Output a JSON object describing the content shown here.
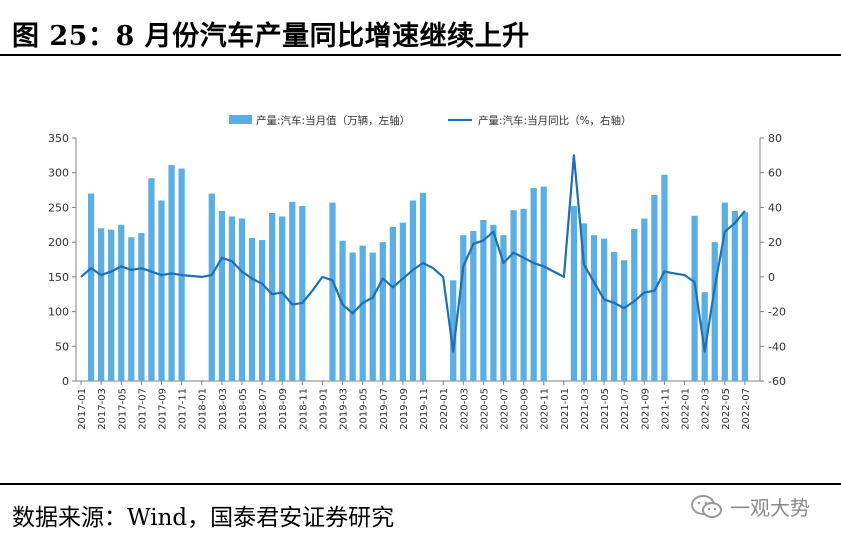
{
  "header": {
    "title": "图 25：8 月份汽车产量同比增速继续上升"
  },
  "footer": {
    "source": "数据来源：Wind，国泰君安证券研究",
    "watermark": "一观大势"
  },
  "colors": {
    "bar": "#5aaee3",
    "line": "#1f6fb3",
    "axis": "#808080",
    "text": "#333333"
  },
  "chart_data": {
    "type": "bar+line",
    "title": "",
    "legend": [
      "产量:汽车:当月值（万辆，左轴）",
      "产量:汽车:当月同比（%，右轴）"
    ],
    "legend_position": "top",
    "y_left": {
      "min": 0,
      "max": 350,
      "ticks": [
        0,
        50,
        100,
        150,
        200,
        250,
        300,
        350
      ]
    },
    "y_right": {
      "min": -60,
      "max": 80,
      "ticks": [
        -60,
        -40,
        -20,
        0,
        20,
        40,
        60,
        80
      ]
    },
    "x_tick_labels": [
      "2017-01",
      "2017-03",
      "2017-05",
      "2017-07",
      "2017-09",
      "2017-11",
      "2018-01",
      "2018-03",
      "2018-05",
      "2018-07",
      "2018-09",
      "2018-11",
      "2019-01",
      "2019-03",
      "2019-05",
      "2019-07",
      "2019-09",
      "2019-11",
      "2020-01",
      "2020-03",
      "2020-05",
      "2020-07",
      "2020-09",
      "2020-11",
      "2021-01",
      "2021-03",
      "2021-05",
      "2021-07",
      "2021-09",
      "2021-11",
      "2022-01",
      "2022-03",
      "2022-05",
      "2022-07"
    ],
    "months": [
      "2017-01",
      "2017-02",
      "2017-03",
      "2017-04",
      "2017-05",
      "2017-06",
      "2017-07",
      "2017-08",
      "2017-09",
      "2017-10",
      "2017-11",
      "2017-12",
      "2018-01",
      "2018-02",
      "2018-03",
      "2018-04",
      "2018-05",
      "2018-06",
      "2018-07",
      "2018-08",
      "2018-09",
      "2018-10",
      "2018-11",
      "2018-12",
      "2019-01",
      "2019-02",
      "2019-03",
      "2019-04",
      "2019-05",
      "2019-06",
      "2019-07",
      "2019-08",
      "2019-09",
      "2019-10",
      "2019-11",
      "2019-12",
      "2020-01",
      "2020-02",
      "2020-03",
      "2020-04",
      "2020-05",
      "2020-06",
      "2020-07",
      "2020-08",
      "2020-09",
      "2020-10",
      "2020-11",
      "2020-12",
      "2021-01",
      "2021-02",
      "2021-03",
      "2021-04",
      "2021-05",
      "2021-06",
      "2021-07",
      "2021-08",
      "2021-09",
      "2021-10",
      "2021-11",
      "2021-12",
      "2022-01",
      "2022-02",
      "2022-03",
      "2022-04",
      "2022-05",
      "2022-06",
      "2022-07",
      "2022-08"
    ],
    "series": [
      {
        "name": "产量:汽车:当月值（万辆，左轴）",
        "axis": "left",
        "type": "bar",
        "values": [
          null,
          270,
          220,
          218,
          225,
          207,
          213,
          292,
          260,
          311,
          306,
          null,
          null,
          270,
          245,
          237,
          234,
          206,
          203,
          242,
          237,
          258,
          252,
          null,
          null,
          257,
          202,
          185,
          195,
          185,
          200,
          222,
          228,
          260,
          271,
          null,
          null,
          145,
          210,
          216,
          232,
          225,
          210,
          246,
          248,
          278,
          280,
          null,
          null,
          252,
          227,
          210,
          205,
          186,
          174,
          219,
          234,
          268,
          297,
          null,
          null,
          238,
          128,
          200,
          257,
          245,
          243,
          null
        ]
      },
      {
        "name": "产量:汽车:当月同比（%，右轴）",
        "axis": "right",
        "type": "line",
        "values": [
          0,
          5,
          1,
          3,
          6,
          4,
          5,
          3,
          1,
          2,
          1,
          0.5,
          0,
          1,
          11,
          9,
          3,
          -1,
          -4,
          -10,
          -9,
          -16,
          -15,
          -8,
          0,
          -2,
          -16,
          -21,
          -15,
          -12,
          -1,
          -6,
          -1,
          4,
          8,
          5,
          0,
          -43,
          6,
          19,
          21,
          26,
          8,
          14,
          11,
          8,
          6,
          3,
          0,
          70,
          7,
          -3,
          -13,
          -15,
          -18,
          -14,
          -9,
          -8,
          3,
          2,
          1,
          -3,
          -43,
          -6,
          26,
          31,
          38,
          null
        ]
      }
    ]
  }
}
